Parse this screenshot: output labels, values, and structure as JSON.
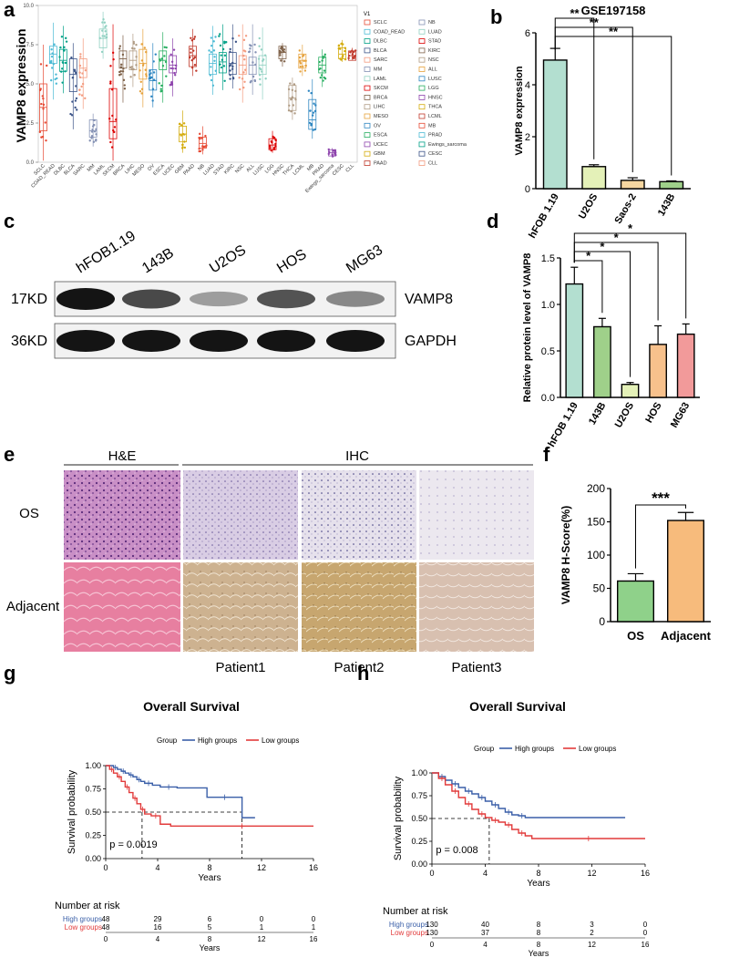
{
  "panel_letters": [
    "a",
    "b",
    "c",
    "d",
    "e",
    "f",
    "g",
    "h"
  ],
  "colors": {
    "hfob": "#b3dfd0",
    "u2os": "#e4f1b8",
    "saos": "#f5d6a0",
    "b143": "#9fd08a",
    "hos": "#f7c18c",
    "mg63": "#f29a9a",
    "high": "#3a5fa8",
    "low": "#e23a3a",
    "f_os": "#8fd18a",
    "f_adj": "#f7bb7c"
  },
  "panel_a": {
    "ylabel": "VAMP8 expression",
    "legend_title": "V1",
    "legend_col1": [
      "SCLC",
      "COAD_READ",
      "DLBC",
      "BLCA",
      "SARC",
      "MM",
      "LAML",
      "SKCM",
      "BRCA",
      "LIHC",
      "MESO",
      "OV",
      "ESCA",
      "UCEC",
      "GBM",
      "PAAD"
    ],
    "legend_col2": [
      "NB",
      "LUAD",
      "STAD",
      "KIRC",
      "NSC",
      "ALL",
      "LUSC",
      "LGG",
      "HNSC",
      "THCA",
      "LCML",
      "MB",
      "PRAD",
      "Ewings_sarcoma",
      "CESC",
      "CLL"
    ],
    "categories": [
      "SCLC",
      "COAD_READ",
      "DLBC",
      "BLCA",
      "SARC",
      "MM",
      "LAML",
      "SKCM",
      "BRCA",
      "LIHC",
      "MESO",
      "OV",
      "ESCA",
      "UCEC",
      "GBM",
      "PAAD",
      "NB",
      "LUAD",
      "STAD",
      "KIRC",
      "NSC",
      "ALL",
      "LUSC",
      "LGG",
      "HNSC",
      "THCA",
      "LCML",
      "MB",
      "PRAD",
      "Ewings_sarcoma",
      "CESC",
      "CLL"
    ]
  },
  "panel_c": {
    "lanes": [
      "hFOB1.19",
      "143B",
      "U2OS",
      "HOS",
      "MG63"
    ],
    "rows": [
      {
        "kd": "17KD",
        "protein": "VAMP8",
        "intensity": [
          1.0,
          0.75,
          0.35,
          0.7,
          0.45
        ]
      },
      {
        "kd": "36KD",
        "protein": "GAPDH",
        "intensity": [
          1.0,
          1.0,
          1.0,
          1.0,
          1.0
        ]
      }
    ]
  },
  "panel_e": {
    "group_he": "H&E",
    "group_ihc": "IHC",
    "row_os": "OS",
    "row_adj": "Adjacent",
    "patients": [
      "Patient1",
      "Patient2",
      "Patient3"
    ]
  },
  "chart_data": [
    {
      "id": "a",
      "type": "scatter",
      "ylabel": "VAMP8 expression",
      "ylim": [
        0,
        10
      ],
      "yticks": [
        0.0,
        2.5,
        5.0,
        7.5,
        10.0
      ],
      "categories": [
        "SCLC",
        "COAD_READ",
        "DLBC",
        "BLCA",
        "SARC",
        "MM",
        "LAML",
        "SKCM",
        "BRCA",
        "LIHC",
        "MESO",
        "OV",
        "ESCA",
        "UCEC",
        "GBM",
        "PAAD",
        "NB",
        "LUAD",
        "STAD",
        "KIRC",
        "NSC",
        "ALL",
        "LUSC",
        "LGG",
        "HNSC",
        "THCA",
        "LCML",
        "MB",
        "PRAD",
        "Ewings_sarcoma",
        "CESC",
        "CLL"
      ],
      "medians": [
        3.5,
        6.9,
        6.5,
        5.6,
        6.0,
        2.0,
        7.9,
        2.6,
        6.6,
        6.5,
        6.3,
        5.2,
        6.5,
        6.2,
        1.8,
        6.8,
        1.2,
        6.3,
        6.4,
        6.3,
        6.2,
        6.2,
        6.2,
        1.1,
        7.0,
        4.1,
        6.5,
        2.7,
        6.2,
        0.6,
        6.9,
        6.8
      ],
      "q1": [
        2.0,
        6.3,
        5.8,
        4.5,
        5.4,
        1.6,
        7.3,
        1.5,
        6.0,
        5.9,
        5.3,
        4.6,
        5.9,
        5.7,
        1.3,
        6.1,
        0.9,
        5.6,
        5.7,
        5.6,
        5.6,
        5.6,
        5.6,
        0.8,
        6.6,
        3.3,
        6.0,
        2.1,
        5.7,
        0.4,
        6.6,
        6.5
      ],
      "q3": [
        5.0,
        7.4,
        7.2,
        6.6,
        6.6,
        2.7,
        8.5,
        4.7,
        7.1,
        7.1,
        7.2,
        5.9,
        7.1,
        6.8,
        2.3,
        7.4,
        1.6,
        6.9,
        7.0,
        7.0,
        6.8,
        6.7,
        6.8,
        1.5,
        7.4,
        4.9,
        6.9,
        4.0,
        6.7,
        0.8,
        7.3,
        7.1
      ],
      "min": [
        0.1,
        4.0,
        4.4,
        2.1,
        3.4,
        1.0,
        6.6,
        0.1,
        3.8,
        4.8,
        3.5,
        3.5,
        3.8,
        4.2,
        0.6,
        5.5,
        0.5,
        4.3,
        4.6,
        4.7,
        3.8,
        4.3,
        4.0,
        0.6,
        6.1,
        2.7,
        5.5,
        1.5,
        4.8,
        0.3,
        6.4,
        6.5
      ],
      "max": [
        7.5,
        8.9,
        8.7,
        7.6,
        7.9,
        3.1,
        9.6,
        8.8,
        8.1,
        8.2,
        8.5,
        7.6,
        8.3,
        7.9,
        3.3,
        8.5,
        2.3,
        8.7,
        8.8,
        8.8,
        8.8,
        8.8,
        8.6,
        2.0,
        7.6,
        5.4,
        7.5,
        5.3,
        7.2,
        0.9,
        7.8,
        7.3
      ]
    },
    {
      "id": "b",
      "type": "bar",
      "title": "GSE197158",
      "ylabel": "VAMP8 expression",
      "ylim": [
        0,
        6
      ],
      "yticks": [
        0,
        2,
        4,
        6
      ],
      "categories": [
        "hFOB 1.19",
        "U2OS",
        "Saos-2",
        "143B"
      ],
      "values": [
        4.95,
        0.85,
        0.32,
        0.27
      ],
      "errors": [
        0.45,
        0.07,
        0.1,
        0.03
      ],
      "significance": [
        "**",
        "**",
        "**"
      ]
    },
    {
      "id": "d",
      "type": "bar",
      "ylabel": "Relative protein level of VAMP8",
      "ylim": [
        0,
        1.5
      ],
      "yticks": [
        0.0,
        0.5,
        1.0,
        1.5
      ],
      "categories": [
        "hFOB 1.19",
        "143B",
        "U2OS",
        "HOS",
        "MG63"
      ],
      "values": [
        1.22,
        0.76,
        0.14,
        0.57,
        0.68
      ],
      "errors": [
        0.18,
        0.09,
        0.02,
        0.2,
        0.11
      ],
      "significance": [
        "*",
        "*",
        "*",
        "*"
      ]
    },
    {
      "id": "f",
      "type": "bar",
      "ylabel": "VAMP8 H-Score(%)",
      "ylim": [
        0,
        200
      ],
      "yticks": [
        0,
        50,
        100,
        150,
        200
      ],
      "categories": [
        "OS",
        "Adjacent"
      ],
      "values": [
        61,
        152
      ],
      "errors": [
        11,
        12
      ],
      "significance": "***"
    },
    {
      "id": "g",
      "type": "line",
      "title": "Overall Survival",
      "xlabel": "Years",
      "ylabel": "Survival probability",
      "legend_title": "Group",
      "legend": [
        "High groups",
        "Low groups"
      ],
      "xlim": [
        0,
        16
      ],
      "xticks": [
        0,
        4,
        8,
        12,
        16
      ],
      "ylim": [
        0,
        1
      ],
      "yticks": [
        "0.00",
        "0.25",
        "0.50",
        "0.75",
        "1.00"
      ],
      "pvalue": "p = 0.0019",
      "medians": [
        2.8,
        10.5
      ],
      "series": [
        {
          "name": "High groups",
          "x": [
            0,
            0.6,
            0.9,
            1.2,
            1.5,
            1.8,
            2.1,
            2.4,
            2.7,
            3.0,
            3.6,
            4.2,
            5.5,
            7.8,
            10.5,
            11.5
          ],
          "y": [
            1.0,
            0.98,
            0.96,
            0.94,
            0.92,
            0.9,
            0.88,
            0.85,
            0.83,
            0.81,
            0.79,
            0.77,
            0.76,
            0.66,
            0.44,
            0.44
          ]
        },
        {
          "name": "Low groups",
          "x": [
            0,
            0.3,
            0.6,
            0.9,
            1.2,
            1.5,
            1.8,
            2.1,
            2.4,
            2.7,
            3.0,
            3.5,
            4.2,
            5.0,
            16.0
          ],
          "y": [
            1.0,
            0.96,
            0.92,
            0.88,
            0.83,
            0.77,
            0.71,
            0.65,
            0.59,
            0.53,
            0.48,
            0.46,
            0.37,
            0.35,
            0.35
          ]
        }
      ],
      "risk_title": "Number at risk",
      "risk_times": [
        0,
        4,
        8,
        12,
        16
      ],
      "risk": [
        {
          "name": "High groups",
          "counts": [
            "48",
            "29",
            "6",
            "0",
            "0"
          ]
        },
        {
          "name": "Low groups",
          "counts": [
            "48",
            "16",
            "5",
            "1",
            "1"
          ]
        }
      ]
    },
    {
      "id": "h",
      "type": "line",
      "title": "Overall Survival",
      "xlabel": "Years",
      "ylabel": "Survival probability",
      "legend_title": "Group",
      "legend": [
        "High groups",
        "Low groups"
      ],
      "xlim": [
        0,
        16
      ],
      "xticks": [
        0,
        4,
        8,
        12,
        16
      ],
      "ylim": [
        0,
        1
      ],
      "yticks": [
        "0.00",
        "0.25",
        "0.50",
        "0.75",
        "1.00"
      ],
      "pvalue": "p = 0.008",
      "medians": [
        4.3
      ],
      "series": [
        {
          "name": "High groups",
          "x": [
            0,
            0.5,
            1,
            1.5,
            2,
            2.5,
            3,
            3.5,
            4,
            4.5,
            5,
            5.5,
            6,
            6.5,
            7,
            14.5
          ],
          "y": [
            1.0,
            0.96,
            0.92,
            0.88,
            0.84,
            0.8,
            0.77,
            0.73,
            0.69,
            0.65,
            0.61,
            0.57,
            0.54,
            0.53,
            0.51,
            0.51
          ]
        },
        {
          "name": "Low groups",
          "x": [
            0,
            0.5,
            1,
            1.5,
            2,
            2.5,
            3,
            3.5,
            4,
            4.5,
            5,
            5.5,
            6,
            6.5,
            7,
            7.5,
            16.0
          ],
          "y": [
            1.0,
            0.94,
            0.87,
            0.8,
            0.73,
            0.66,
            0.6,
            0.55,
            0.51,
            0.48,
            0.46,
            0.43,
            0.38,
            0.34,
            0.31,
            0.28,
            0.28
          ]
        }
      ],
      "risk_title": "Number at risk",
      "risk_times": [
        0,
        4,
        8,
        12,
        16
      ],
      "risk": [
        {
          "name": "High groups",
          "counts": [
            "130",
            "40",
            "8",
            "3",
            "0"
          ]
        },
        {
          "name": "Low groups",
          "counts": [
            "130",
            "37",
            "8",
            "2",
            "0"
          ]
        }
      ]
    }
  ]
}
